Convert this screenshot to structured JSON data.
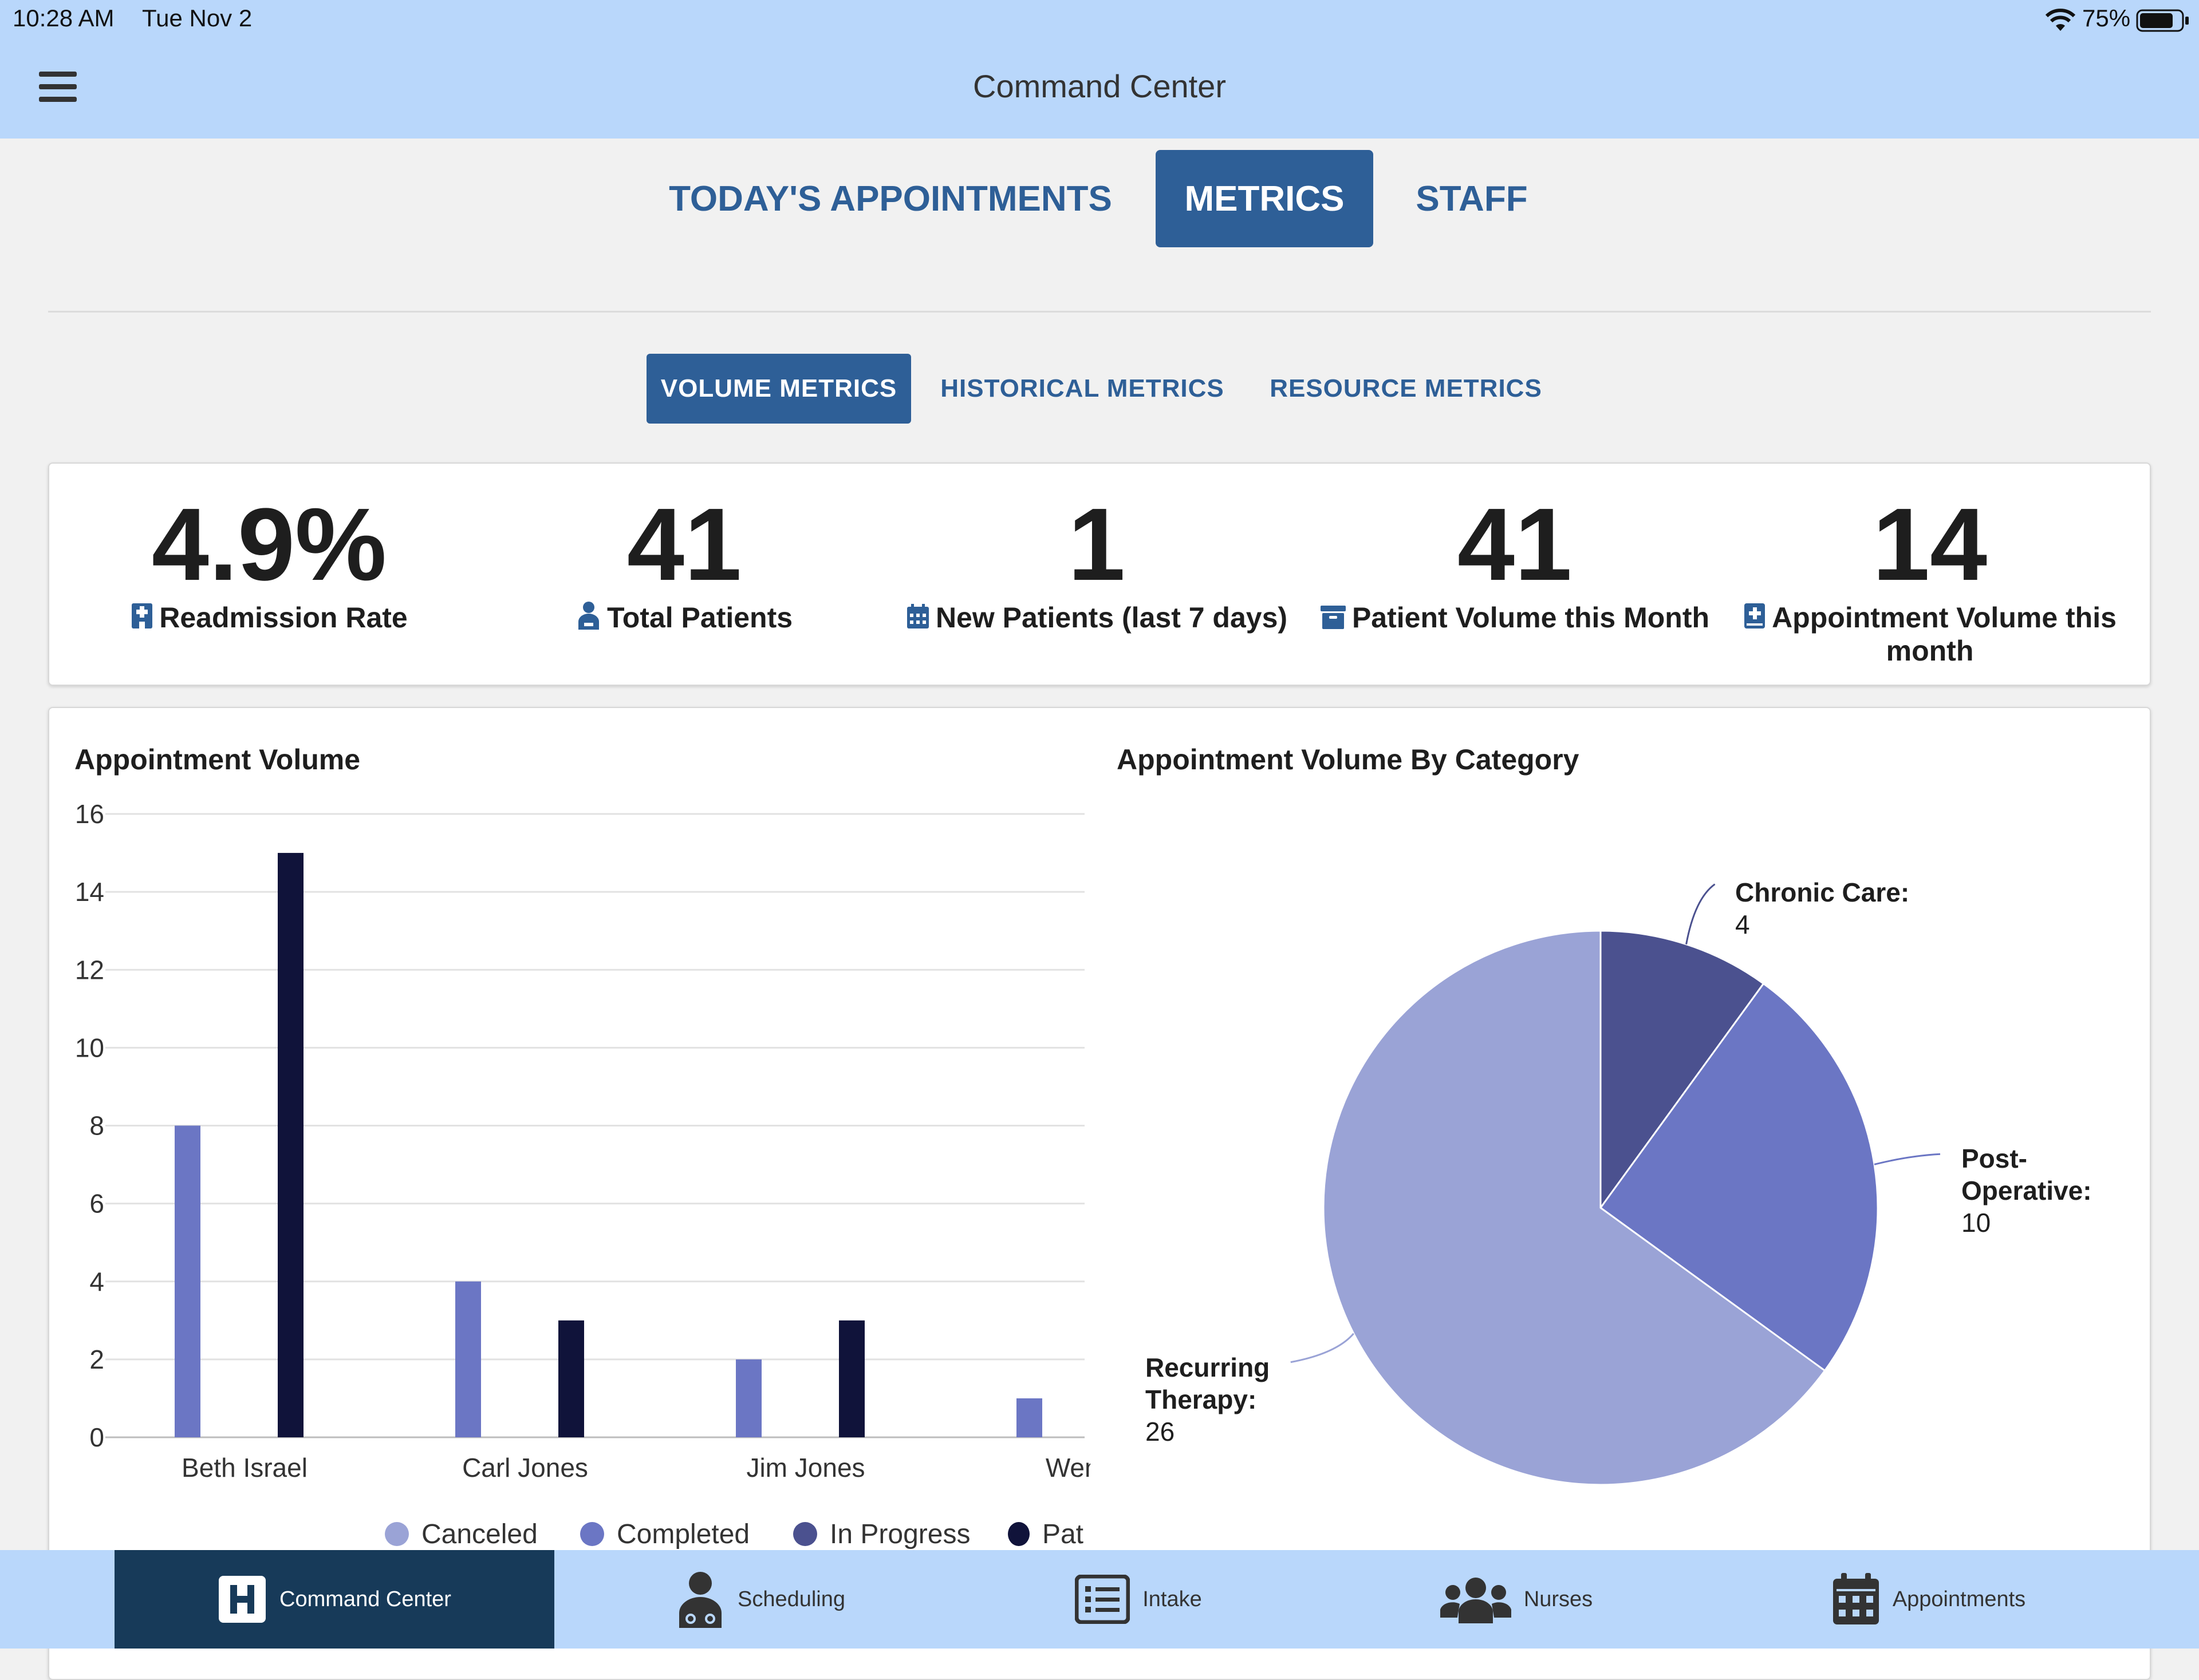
{
  "status_bar": {
    "time": "10:28 AM",
    "date": "Tue Nov 2",
    "battery": "75%"
  },
  "header": {
    "title": "Command Center",
    "menu_icon": "hamburger-menu-icon"
  },
  "tabs": [
    {
      "label": "TODAY'S APPOINTMENTS",
      "active": false
    },
    {
      "label": "METRICS",
      "active": true
    },
    {
      "label": "STAFF",
      "active": false
    }
  ],
  "subtabs": [
    {
      "label": "VOLUME METRICS",
      "active": true
    },
    {
      "label": "HISTORICAL METRICS",
      "active": false
    },
    {
      "label": "RESOURCE METRICS",
      "active": false
    }
  ],
  "kpis": [
    {
      "value": "4.9%",
      "label": "Readmission Rate",
      "icon": "hospital-icon"
    },
    {
      "value": "41",
      "label": "Total Patients",
      "icon": "user-injured-icon"
    },
    {
      "value": "1",
      "label": "New Patients (last 7 days)",
      "icon": "calendar-icon"
    },
    {
      "value": "41",
      "label": "Patient Volume this Month",
      "icon": "archive-icon"
    },
    {
      "value": "14",
      "label": "Appointment Volume this month",
      "icon": "medical-book-icon"
    }
  ],
  "colors": {
    "canceled": "#9aa3d6",
    "completed": "#6b76c4",
    "in_progress": "#4b518f",
    "pat": "#10133a",
    "accent": "#2e5f97",
    "navbar_active": "#173a59"
  },
  "chart_data": [
    {
      "type": "bar",
      "title": "Appointment Volume",
      "categories": [
        "Beth Israel",
        "Carl Jones",
        "Jim Jones",
        "Wendy"
      ],
      "series": [
        {
          "name": "Canceled",
          "values": [
            0,
            0,
            0,
            0
          ]
        },
        {
          "name": "Completed",
          "values": [
            8,
            4,
            2,
            1
          ]
        },
        {
          "name": "In Progress",
          "values": [
            0,
            0,
            0,
            0
          ]
        },
        {
          "name": "Pat",
          "values": [
            15,
            3,
            3,
            null
          ]
        }
      ],
      "yticks": [
        "0",
        "2",
        "4",
        "6",
        "8",
        "10",
        "12",
        "14",
        "16"
      ],
      "ylim": [
        0,
        16
      ],
      "grid": true,
      "legend": "bottom"
    },
    {
      "type": "pie",
      "title": "Appointment Volume By Category",
      "slices": [
        {
          "label": "Chronic Care:",
          "value": 4
        },
        {
          "label": "Post-Operative:",
          "value": 10
        },
        {
          "label": "Recurring Therapy:",
          "value": 26
        }
      ]
    }
  ],
  "nav": [
    {
      "label": "Command Center",
      "icon": "hospital-h-icon",
      "active": true
    },
    {
      "label": "Scheduling",
      "icon": "doctor-icon",
      "active": false
    },
    {
      "label": "Intake",
      "icon": "list-icon",
      "active": false
    },
    {
      "label": "Nurses",
      "icon": "users-icon",
      "active": false
    },
    {
      "label": "Appointments",
      "icon": "calendar-icon",
      "active": false
    }
  ]
}
